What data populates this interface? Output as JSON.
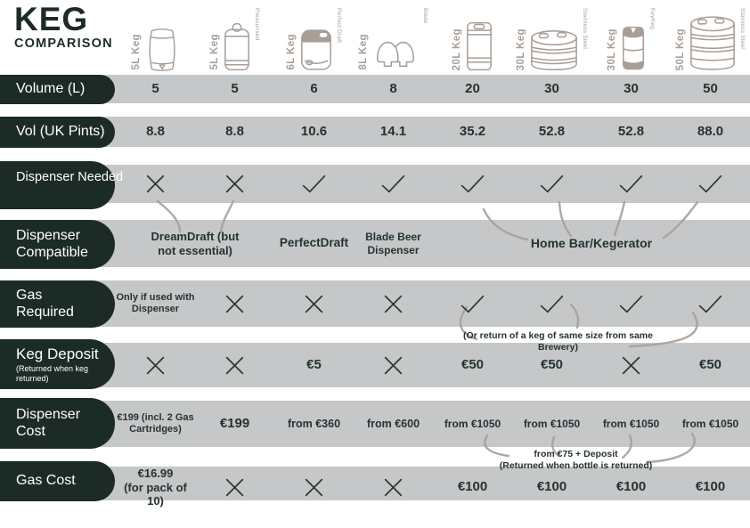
{
  "title": {
    "main": "KEG",
    "sub": "COMPARISON"
  },
  "colors": {
    "dark": "#1d2b27",
    "band": "#c6c7c8",
    "taupe": "#a89e97"
  },
  "chart_data": {
    "type": "table",
    "title": "KEG COMPARISON",
    "columns": [
      {
        "label": "5L Keg",
        "sublabel": "",
        "icon": "barrel-keg-icon",
        "volume_l": 5
      },
      {
        "label": "5L Keg",
        "sublabel": "Pressurised",
        "icon": "mini-keg-icon",
        "volume_l": 5
      },
      {
        "label": "6L Keg",
        "sublabel": "Perfect Draft",
        "icon": "perfectdraft-keg-icon",
        "volume_l": 6
      },
      {
        "label": "8L Keg",
        "sublabel": "Blade",
        "icon": "blade-keg-icon",
        "volume_l": 8
      },
      {
        "label": "20L Keg",
        "sublabel": "",
        "icon": "slim-keg-icon",
        "volume_l": 20
      },
      {
        "label": "30L Keg",
        "sublabel": "Stainless Steel",
        "icon": "steel-keg-icon",
        "volume_l": 30
      },
      {
        "label": "30L Keg",
        "sublabel": "KeyKeg",
        "icon": "keykeg-icon",
        "volume_l": 30
      },
      {
        "label": "50L Keg",
        "sublabel": "Stainless Steel",
        "icon": "steel-keg-tall-icon",
        "volume_l": 50
      }
    ],
    "rows": {
      "volume": {
        "label": "Volume (L)",
        "cells": [
          "5",
          "5",
          "6",
          "8",
          "20",
          "30",
          "30",
          "50"
        ]
      },
      "pints": {
        "label": "Vol (UK Pints)",
        "cells": [
          "8.8",
          "8.8",
          "10.6",
          "14.1",
          "35.2",
          "52.8",
          "52.8",
          "88.0"
        ]
      },
      "dispenser_needed": {
        "label": "Dispenser Needed",
        "cells": [
          "✕",
          "✕",
          "✓",
          "✓",
          "✓",
          "✓",
          "✓",
          "✓"
        ]
      },
      "dispenser_compatible": {
        "label": "Dispenser\nCompatible",
        "groups": {
          "dreamdraft": "DreamDraft (but\nnot essential)",
          "perfectdraft": "PerfectDraft",
          "blade": "Blade Beer\nDispenser",
          "homebar": "Home Bar/Kegerator"
        }
      },
      "gas_required": {
        "label": "Gas\nRequired",
        "cells": [
          "Only if used with\nDispenser",
          "✕",
          "✕",
          "✕",
          "✓",
          "✓",
          "✓",
          "✓"
        ]
      },
      "keg_deposit": {
        "label": "Keg Deposit",
        "sublabel": "(Returned when keg\nreturned)",
        "cells": [
          "✕",
          "✕",
          "€5",
          "✕",
          "€50",
          "€50",
          "✕",
          "€50"
        ]
      },
      "dispenser_cost": {
        "label": "Dispenser\nCost",
        "cells": [
          "€199 (incl. 2 Gas\nCartridges)",
          "€199",
          "from €360",
          "from €600",
          "from €1050",
          "from €1050",
          "from €1050",
          "from €1050"
        ]
      },
      "gas_cost": {
        "label": "Gas Cost",
        "cells": [
          "€16.99\n(for pack of 10)",
          "✕",
          "✕",
          "✕",
          "€100",
          "€100",
          "€100",
          "€100"
        ]
      }
    },
    "notes": {
      "keg_return": "(Or return of a keg of same size from same\nBrewery)",
      "gas_bottle": "from €75 + Deposit\n(Returned when bottle is returned)"
    }
  }
}
